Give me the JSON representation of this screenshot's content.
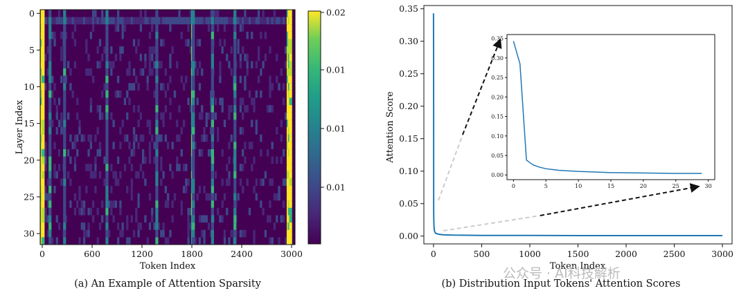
{
  "chart_data": [
    {
      "type": "heatmap",
      "caption": "(a) An Example of Attention Sparsity",
      "xlabel": "Token Index",
      "ylabel": "Layer Index",
      "x_ticks": [
        "0",
        "600",
        "1200",
        "1800",
        "2400",
        "3000"
      ],
      "y_ticks": [
        "0",
        "5",
        "10",
        "15",
        "20",
        "25",
        "30"
      ],
      "xlim": [
        0,
        3000
      ],
      "ylim": [
        0,
        31
      ],
      "colorbar": {
        "colormap": "viridis",
        "range": [
          0,
          0.02
        ],
        "tick_labels": [
          "0.02",
          "0.01",
          "0.01",
          "0.01"
        ]
      },
      "bright_token_columns": [
        0,
        5,
        12,
        95,
        270,
        780,
        1380,
        1810,
        1820,
        2050,
        2320,
        2960,
        2975,
        2990
      ]
    },
    {
      "type": "line",
      "caption": "(b) Distribution Input Tokens' Attention Scores",
      "xlabel": "Token Index",
      "ylabel": "Attention Score",
      "xlim": [
        -100,
        3100
      ],
      "ylim": [
        -0.012,
        0.355
      ],
      "x_ticks": [
        "0",
        "500",
        "1000",
        "1500",
        "2000",
        "2500",
        "3000"
      ],
      "y_ticks": [
        "0.00",
        "0.05",
        "0.10",
        "0.15",
        "0.20",
        "0.25",
        "0.30",
        "0.35"
      ],
      "series_color": "#1f77b4",
      "series": [
        {
          "x": [
            0,
            1,
            2,
            3,
            4,
            5,
            6,
            7,
            8,
            10,
            15,
            20,
            25,
            29,
            50,
            100,
            200,
            500,
            1000,
            1500,
            2000,
            2500,
            3000
          ],
          "y": [
            0.343,
            0.285,
            0.038,
            0.026,
            0.02,
            0.016,
            0.014,
            0.012,
            0.01,
            0.008,
            0.006,
            0.005,
            0.004,
            0.004,
            0.003,
            0.002,
            0.0015,
            0.001,
            0.001,
            0.0008,
            0.0008,
            0.0007,
            0.0007
          ]
        }
      ],
      "inset": {
        "xlim": [
          -1,
          31
        ],
        "ylim": [
          -0.012,
          0.36
        ],
        "x_ticks": [
          "0",
          "5",
          "10",
          "15",
          "20",
          "25",
          "30"
        ],
        "y_ticks": [
          "0.00",
          "0.05",
          "0.10",
          "0.15",
          "0.20",
          "0.25",
          "0.30",
          "0.35"
        ],
        "series": [
          {
            "x": [
              0,
              1,
              2,
              3,
              4,
              5,
              6,
              7,
              8,
              9,
              10,
              12,
              15,
              20,
              25,
              29
            ],
            "y": [
              0.343,
              0.285,
              0.038,
              0.026,
              0.02,
              0.016,
              0.014,
              0.012,
              0.011,
              0.01,
              0.009,
              0.008,
              0.006,
              0.005,
              0.004,
              0.004
            ]
          }
        ]
      }
    }
  ],
  "watermark": "公众号 · AI科技解析"
}
